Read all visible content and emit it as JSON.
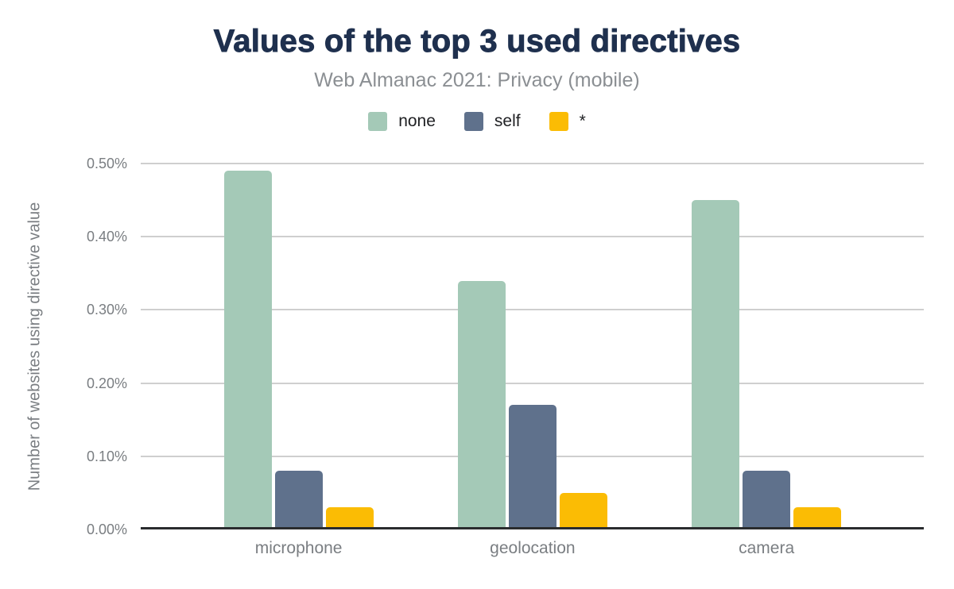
{
  "header": {
    "title": "Values of the top 3 used directives",
    "subtitle": "Web Almanac 2021: Privacy (mobile)"
  },
  "legend": {
    "items": [
      {
        "label": "none",
        "color": "#a4c9b7"
      },
      {
        "label": "self",
        "color": "#5f718c"
      },
      {
        "label": "*",
        "color": "#fbbc04"
      }
    ]
  },
  "chart_data": {
    "type": "bar",
    "title": "Values of the top 3 used directives",
    "subtitle": "Web Almanac 2021: Privacy (mobile)",
    "categories": [
      "microphone",
      "geolocation",
      "camera"
    ],
    "series": [
      {
        "name": "none",
        "color": "#a4c9b7",
        "values": [
          0.49,
          0.34,
          0.45
        ]
      },
      {
        "name": "self",
        "color": "#5f718c",
        "values": [
          0.08,
          0.17,
          0.08
        ]
      },
      {
        "name": "*",
        "color": "#fbbc04",
        "values": [
          0.03,
          0.05,
          0.03
        ]
      }
    ],
    "value_unit": "%",
    "xlabel": "",
    "ylabel": "Number of websites using directive value",
    "ylim": [
      0,
      0.5
    ],
    "ytick_step": 0.1,
    "ytick_labels": [
      "0.00%",
      "0.10%",
      "0.20%",
      "0.30%",
      "0.40%",
      "0.50%"
    ],
    "grid": true,
    "legend_position": "top"
  },
  "colors": {
    "title": "#1f304e",
    "subtitle": "#8b8f93",
    "axis_text": "#7a7e82",
    "gridline": "#cfcfcf",
    "baseline": "#2a2c2e",
    "background": "#ffffff"
  }
}
